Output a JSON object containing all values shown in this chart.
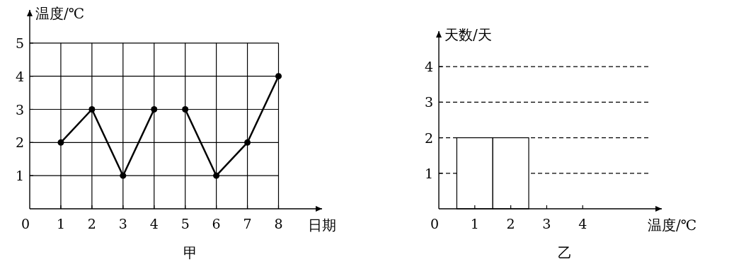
{
  "chart_data": [
    {
      "type": "line",
      "title": "甲",
      "xlabel": "日期",
      "ylabel": "温度/℃",
      "xlim": [
        0,
        9.4
      ],
      "ylim": [
        0,
        6
      ],
      "xticks": [
        0,
        1,
        2,
        3,
        4,
        5,
        6,
        7,
        8
      ],
      "yticks": [
        1,
        2,
        3,
        4,
        5
      ],
      "grid": true,
      "marker": "circle",
      "series": [
        {
          "color": "#000000",
          "x": [
            1,
            2,
            3,
            4
          ],
          "values": [
            2,
            3,
            1,
            3
          ]
        },
        {
          "color": "#000000",
          "x": [
            5,
            6,
            7,
            8
          ],
          "values": [
            3,
            1,
            2,
            4
          ]
        }
      ]
    },
    {
      "type": "bar",
      "title": "乙",
      "xlabel": "温度/℃",
      "ylabel": "天数/天",
      "x": [
        1,
        2
      ],
      "values": [
        2,
        2
      ],
      "color": "#ffffff",
      "xlim": [
        0,
        6.2
      ],
      "ylim": [
        0,
        5
      ],
      "xticks": [
        0,
        1,
        2,
        3,
        4
      ],
      "yticks": [
        1,
        2,
        3,
        4
      ],
      "ref_lines": [
        {
          "axis": "y",
          "value": 1,
          "line_style": "dashed"
        },
        {
          "axis": "y",
          "value": 2,
          "line_style": "dashed"
        },
        {
          "axis": "y",
          "value": 3,
          "line_style": "dashed"
        },
        {
          "axis": "y",
          "value": 4,
          "line_style": "dashed"
        }
      ]
    }
  ]
}
